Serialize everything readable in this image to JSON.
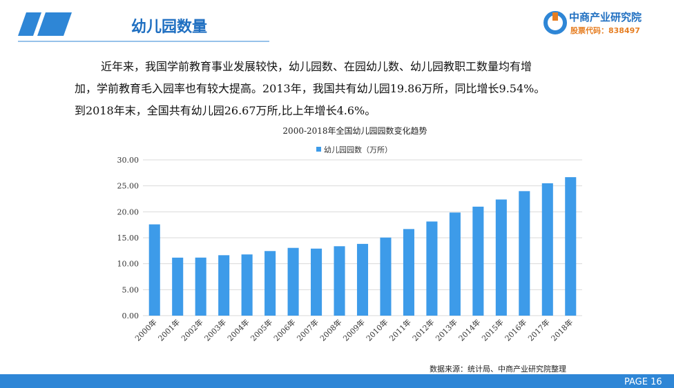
{
  "header": {
    "title": "幼儿园数量",
    "logo_name": "中商产业研究院",
    "logo_code": "股票代码：838497"
  },
  "paragraph": [
    "近年来，我国学前教育事业发展较快，幼儿园数、在园幼儿数、幼儿园教职工数量均有增",
    "加，学前教育毛入园率也有较大提高。2013年，我国共有幼儿园19.86万所，同比增长9.54%。",
    "到2018年末，全国共有幼儿园26.67万所,比上年增长4.6%。"
  ],
  "chart_data": {
    "type": "bar",
    "title": "2000-2018年全国幼儿园园数变化趋势",
    "categories": [
      "2000年",
      "2001年",
      "2002年",
      "2003年",
      "2004年",
      "2005年",
      "2006年",
      "2007年",
      "2008年",
      "2009年",
      "2010年",
      "2011年",
      "2012年",
      "2013年",
      "2014年",
      "2015年",
      "2016年",
      "2017年",
      "2018年"
    ],
    "series": [
      {
        "name": "幼儿园园数（万所）",
        "color": "#3d9be9",
        "values": [
          17.58,
          11.17,
          11.18,
          11.64,
          11.79,
          12.44,
          13.05,
          12.91,
          13.37,
          13.82,
          15.04,
          16.68,
          18.13,
          19.86,
          20.99,
          22.37,
          23.98,
          25.5,
          26.67
        ]
      }
    ],
    "ylim": [
      0,
      30
    ],
    "yticks": [
      {
        "value": 0,
        "label": "0.00"
      },
      {
        "value": 5,
        "label": "5.00"
      },
      {
        "value": 10,
        "label": "10.00"
      },
      {
        "value": 15,
        "label": "15.00"
      },
      {
        "value": 20,
        "label": "20.00"
      },
      {
        "value": 25,
        "label": "25.00"
      },
      {
        "value": 30,
        "label": "30.00"
      }
    ],
    "grid": true,
    "legend": "top"
  },
  "footer": {
    "source": "数据来源：统计局、中商产业研究院整理",
    "page": "PAGE 16"
  }
}
